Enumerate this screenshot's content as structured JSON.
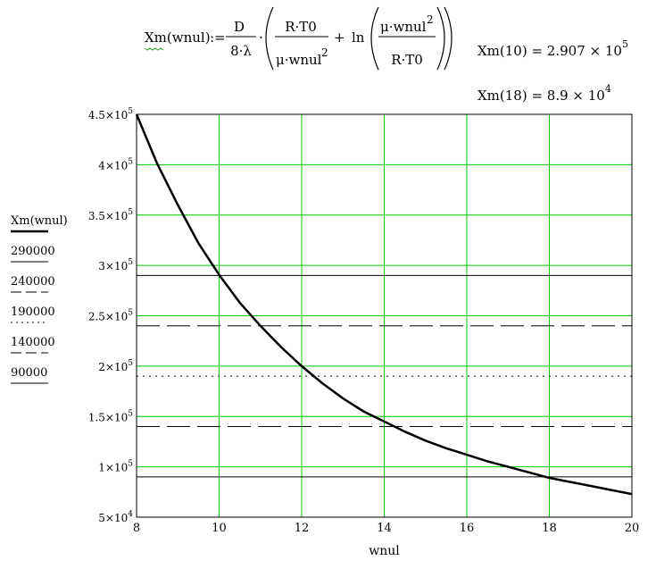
{
  "formula": {
    "lhs": "Xm(wnul)",
    "assign": ":=",
    "coef_num": "D",
    "coef_den": "8·λ",
    "term1_num": "R·T0",
    "term1_den": "μ·wnul",
    "term1_den_exp": "2",
    "plus": "+",
    "ln": "ln",
    "term2_num": "μ·wnul",
    "term2_num_exp": "2",
    "term2_den": "R·T0"
  },
  "results": [
    {
      "lhs": "Xm(10) = 2.907 × 10",
      "exp": "5"
    },
    {
      "lhs": "Xm(18) = 8.9 × 10",
      "exp": "4"
    }
  ],
  "chart_data": {
    "type": "line",
    "xlabel": "wnul",
    "xlim": [
      8,
      20
    ],
    "ylim": [
      50000,
      450000
    ],
    "x_ticks": [
      "8",
      "10",
      "12",
      "14",
      "16",
      "18",
      "20"
    ],
    "y_ticks": [
      {
        "value": 50000,
        "mant": "5×10",
        "exp": "4"
      },
      {
        "value": 100000,
        "mant": "1×10",
        "exp": "5"
      },
      {
        "value": 150000,
        "mant": "1.5×10",
        "exp": "5"
      },
      {
        "value": 200000,
        "mant": "2×10",
        "exp": "5"
      },
      {
        "value": 250000,
        "mant": "2.5×10",
        "exp": "5"
      },
      {
        "value": 300000,
        "mant": "3×10",
        "exp": "5"
      },
      {
        "value": 350000,
        "mant": "3.5×10",
        "exp": "5"
      },
      {
        "value": 400000,
        "mant": "4×10",
        "exp": "5"
      },
      {
        "value": 450000,
        "mant": "4.5×10",
        "exp": "5"
      }
    ],
    "grid": true,
    "grid_color": "#00c800",
    "series": [
      {
        "name": "Xm(wnul)",
        "style": "solid-thick",
        "color": "#000000",
        "x": [
          8,
          8.5,
          9,
          9.5,
          10,
          10.5,
          11,
          11.5,
          12,
          12.5,
          13,
          13.5,
          14,
          14.5,
          15,
          15.5,
          16,
          16.5,
          17,
          17.5,
          18,
          18.5,
          19,
          19.5,
          20
        ],
        "y": [
          450000,
          401000,
          360000,
          322000,
          290700,
          263000,
          240000,
          219000,
          200000,
          183000,
          168000,
          155000,
          145000,
          135000,
          126000,
          118500,
          112000,
          105500,
          100000,
          94500,
          89000,
          85000,
          81000,
          77000,
          73000
        ]
      },
      {
        "name": "290000",
        "style": "solid",
        "color": "#000000",
        "x": [
          8,
          20
        ],
        "y": [
          290000,
          290000
        ]
      },
      {
        "name": "240000",
        "style": "dashed",
        "color": "#000000",
        "x": [
          8,
          20
        ],
        "y": [
          240000,
          240000
        ]
      },
      {
        "name": "190000",
        "style": "dotted",
        "color": "#000000",
        "x": [
          8,
          20
        ],
        "y": [
          190000,
          190000
        ]
      },
      {
        "name": "140000",
        "style": "dashed",
        "color": "#000000",
        "x": [
          8,
          20
        ],
        "y": [
          140000,
          140000
        ]
      },
      {
        "name": "90000",
        "style": "solid",
        "color": "#000000",
        "x": [
          8,
          20
        ],
        "y": [
          90000,
          90000
        ]
      }
    ]
  }
}
